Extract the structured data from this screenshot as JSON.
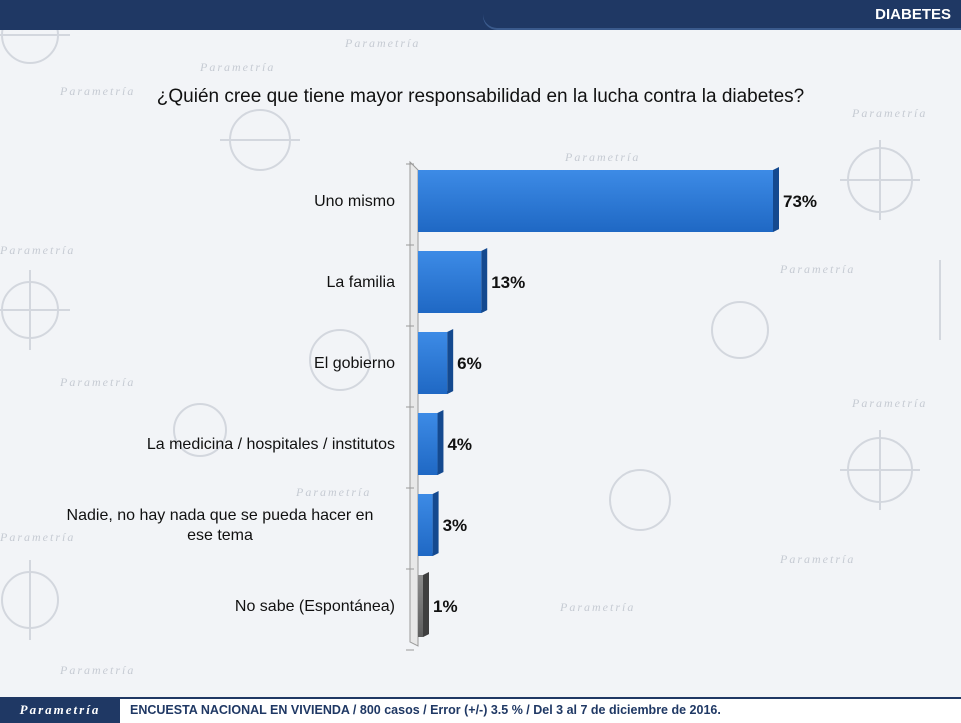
{
  "header": {
    "section": "DIABETES"
  },
  "question": "¿Quién cree que tiene mayor responsabilidad en la lucha contra la diabetes?",
  "footer": {
    "logo": "Parametría",
    "note": "ENCUESTA NACIONAL EN VIVIENDA / 800 casos / Error (+/-) 3.5 % / Del 3 al 7 de diciembre de 2016."
  },
  "chart_data": {
    "type": "bar",
    "orientation": "horizontal",
    "categories": [
      "Uno mismo",
      "La familia",
      "El gobierno",
      "La medicina / hospitales / institutos",
      "Nadie, no hay nada que se pueda hacer en ese tema",
      "No sabe (Espontánea)"
    ],
    "values": [
      73,
      13,
      6,
      4,
      3,
      1
    ],
    "value_labels": [
      "73%",
      "13%",
      "6%",
      "4%",
      "3%",
      "1%"
    ],
    "xlim": [
      0,
      73
    ],
    "bar_colors": [
      "#2e7bd6",
      "#2e7bd6",
      "#2e7bd6",
      "#2e7bd6",
      "#2e7bd6",
      "#7f7f7f"
    ],
    "grid": false,
    "legend": "none"
  }
}
